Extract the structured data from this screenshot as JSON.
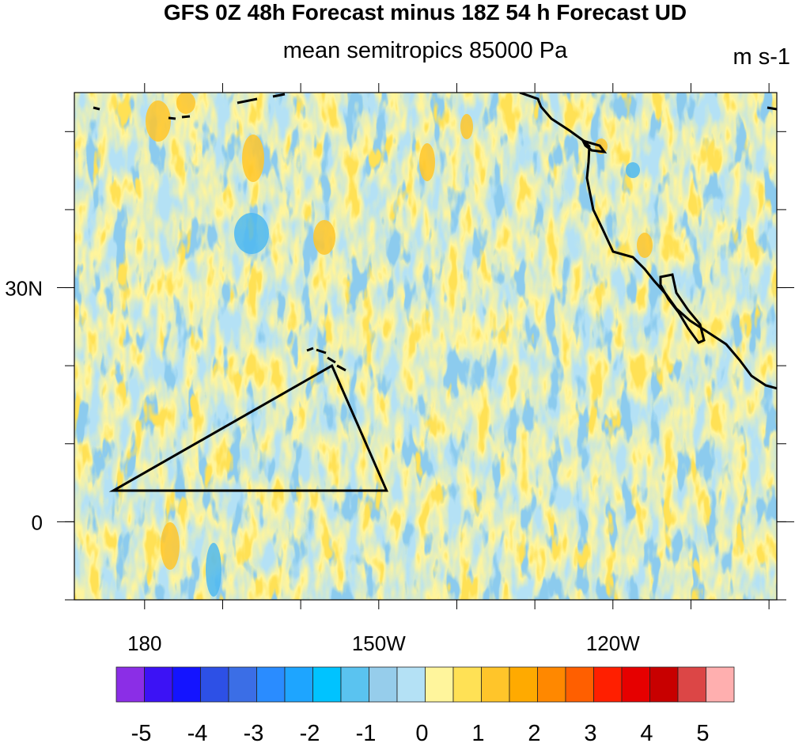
{
  "title": "GFS 0Z 48h Forecast minus 18Z 54 h Forecast UD",
  "subtitle": "mean semitropics 85000 Pa",
  "units": "m s-1",
  "map": {
    "lon_range": [
      171,
      261
    ],
    "lat_range": [
      -10,
      55
    ],
    "x_tick_labels": [
      {
        "lon": 180,
        "text": "180"
      },
      {
        "lon": 210,
        "text": "150W"
      },
      {
        "lon": 240,
        "text": "120W"
      }
    ],
    "y_tick_labels": [
      {
        "lat": 30,
        "text": "30N"
      },
      {
        "lat": 0,
        "text": "0"
      }
    ],
    "triangle_vertices_lonlat": [
      [
        176,
        4
      ],
      [
        204,
        20
      ],
      [
        211,
        4
      ]
    ],
    "field_colors": {
      "neg_weak": "#b4e1f5",
      "neg_mod": "#8ccbee",
      "neg_strong": "#4fb8f0",
      "pos_weak": "#fff59c",
      "pos_mod": "#ffe155",
      "pos_strong": "#ffc62a"
    }
  },
  "colorbar": {
    "colors": [
      "#8b2ee6",
      "#3c12f5",
      "#1414ff",
      "#2d50e6",
      "#3b6ee6",
      "#2a8cff",
      "#1ea5ff",
      "#00c3ff",
      "#5ac3f0",
      "#96cdeb",
      "#b4e1f5",
      "#fff59c",
      "#ffe155",
      "#ffc52a",
      "#ffaa00",
      "#ff8800",
      "#ff5f00",
      "#ff1f00",
      "#e60000",
      "#c80000",
      "#dc4646",
      "#ffafaf"
    ],
    "labels": [
      {
        "text": "-5",
        "after_box": 1
      },
      {
        "text": "-4",
        "after_box": 3
      },
      {
        "text": "-3",
        "after_box": 5
      },
      {
        "text": "-2",
        "after_box": 7
      },
      {
        "text": "-1",
        "after_box": 9
      },
      {
        "text": "0",
        "after_box": 11
      },
      {
        "text": "1",
        "after_box": 13
      },
      {
        "text": "2",
        "after_box": 15
      },
      {
        "text": "3",
        "after_box": 17
      },
      {
        "text": "4",
        "after_box": 19
      },
      {
        "text": "5",
        "after_box": 21
      }
    ]
  }
}
